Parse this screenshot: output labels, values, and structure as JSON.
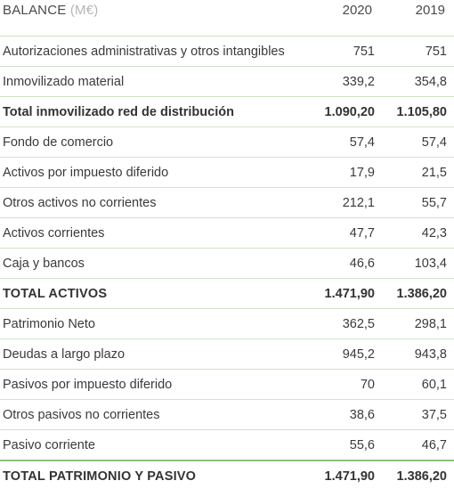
{
  "header": {
    "title": "BALANCE",
    "unit": "(M€)",
    "year1": "2020",
    "year2": "2019"
  },
  "rows": [
    {
      "label": "Autorizaciones administrativas y otros intangibles",
      "v2020": "751",
      "v2019": "751"
    },
    {
      "label": "Inmovilizado material",
      "v2020": "339,2",
      "v2019": "354,8"
    },
    {
      "label": "Total inmovilizado red de distribución",
      "v2020": "1.090,20",
      "v2019": "1.105,80"
    },
    {
      "label": "Fondo de comercio",
      "v2020": "57,4",
      "v2019": "57,4"
    },
    {
      "label": "Activos por impuesto diferido",
      "v2020": "17,9",
      "v2019": "21,5"
    },
    {
      "label": "Otros activos no corrientes",
      "v2020": "212,1",
      "v2019": "55,7"
    },
    {
      "label": "Activos corrientes",
      "v2020": "47,7",
      "v2019": "42,3"
    },
    {
      "label": "Caja y bancos",
      "v2020": "46,6",
      "v2019": "103,4"
    },
    {
      "label": "TOTAL ACTIVOS",
      "v2020": "1.471,90",
      "v2019": "1.386,20"
    },
    {
      "label": "Patrimonio Neto",
      "v2020": "362,5",
      "v2019": "298,1"
    },
    {
      "label": "Deudas a largo plazo",
      "v2020": "945,2",
      "v2019": "943,8"
    },
    {
      "label": "Pasivos por impuesto diferido",
      "v2020": "70",
      "v2019": "60,1"
    },
    {
      "label": "Otros pasivos no corrientes",
      "v2020": "38,6",
      "v2019": "37,5"
    },
    {
      "label": "Pasivo corriente",
      "v2020": "55,6",
      "v2019": "46,7"
    },
    {
      "label": "TOTAL PATRIMONIO Y PASIVO",
      "v2020": "1.471,90",
      "v2019": "1.386,20"
    }
  ]
}
